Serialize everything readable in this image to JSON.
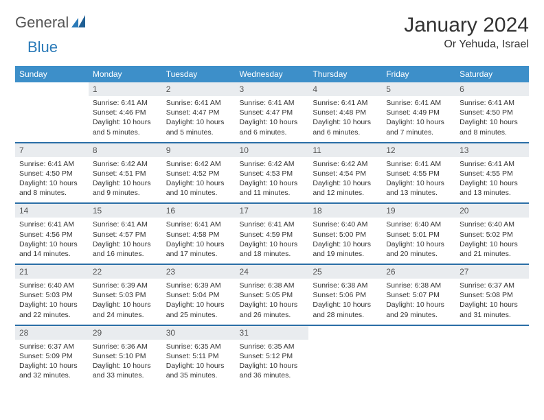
{
  "logo": {
    "word1": "General",
    "word2": "Blue"
  },
  "title": "January 2024",
  "location": "Or Yehuda, Israel",
  "colors": {
    "header_bg": "#3d8fc9",
    "header_text": "#ffffff",
    "week_divider": "#2a6ea6",
    "daynum_bg": "#e9ecef",
    "text": "#333333",
    "logo_gray": "#555555",
    "logo_blue": "#2a7ab8",
    "page_bg": "#ffffff"
  },
  "typography": {
    "title_fontsize": 30,
    "location_fontsize": 16,
    "dayhead_fontsize": 12,
    "daynum_fontsize": 12,
    "body_fontsize": 10.5
  },
  "day_names": [
    "Sunday",
    "Monday",
    "Tuesday",
    "Wednesday",
    "Thursday",
    "Friday",
    "Saturday"
  ],
  "weeks": [
    {
      "nums": [
        "",
        "1",
        "2",
        "3",
        "4",
        "5",
        "6"
      ],
      "cells": [
        {
          "empty": true
        },
        {
          "sunrise": "Sunrise: 6:41 AM",
          "sunset": "Sunset: 4:46 PM",
          "day1": "Daylight: 10 hours",
          "day2": "and 5 minutes."
        },
        {
          "sunrise": "Sunrise: 6:41 AM",
          "sunset": "Sunset: 4:47 PM",
          "day1": "Daylight: 10 hours",
          "day2": "and 5 minutes."
        },
        {
          "sunrise": "Sunrise: 6:41 AM",
          "sunset": "Sunset: 4:47 PM",
          "day1": "Daylight: 10 hours",
          "day2": "and 6 minutes."
        },
        {
          "sunrise": "Sunrise: 6:41 AM",
          "sunset": "Sunset: 4:48 PM",
          "day1": "Daylight: 10 hours",
          "day2": "and 6 minutes."
        },
        {
          "sunrise": "Sunrise: 6:41 AM",
          "sunset": "Sunset: 4:49 PM",
          "day1": "Daylight: 10 hours",
          "day2": "and 7 minutes."
        },
        {
          "sunrise": "Sunrise: 6:41 AM",
          "sunset": "Sunset: 4:50 PM",
          "day1": "Daylight: 10 hours",
          "day2": "and 8 minutes."
        }
      ]
    },
    {
      "nums": [
        "7",
        "8",
        "9",
        "10",
        "11",
        "12",
        "13"
      ],
      "cells": [
        {
          "sunrise": "Sunrise: 6:41 AM",
          "sunset": "Sunset: 4:50 PM",
          "day1": "Daylight: 10 hours",
          "day2": "and 8 minutes."
        },
        {
          "sunrise": "Sunrise: 6:42 AM",
          "sunset": "Sunset: 4:51 PM",
          "day1": "Daylight: 10 hours",
          "day2": "and 9 minutes."
        },
        {
          "sunrise": "Sunrise: 6:42 AM",
          "sunset": "Sunset: 4:52 PM",
          "day1": "Daylight: 10 hours",
          "day2": "and 10 minutes."
        },
        {
          "sunrise": "Sunrise: 6:42 AM",
          "sunset": "Sunset: 4:53 PM",
          "day1": "Daylight: 10 hours",
          "day2": "and 11 minutes."
        },
        {
          "sunrise": "Sunrise: 6:42 AM",
          "sunset": "Sunset: 4:54 PM",
          "day1": "Daylight: 10 hours",
          "day2": "and 12 minutes."
        },
        {
          "sunrise": "Sunrise: 6:41 AM",
          "sunset": "Sunset: 4:55 PM",
          "day1": "Daylight: 10 hours",
          "day2": "and 13 minutes."
        },
        {
          "sunrise": "Sunrise: 6:41 AM",
          "sunset": "Sunset: 4:55 PM",
          "day1": "Daylight: 10 hours",
          "day2": "and 13 minutes."
        }
      ]
    },
    {
      "nums": [
        "14",
        "15",
        "16",
        "17",
        "18",
        "19",
        "20"
      ],
      "cells": [
        {
          "sunrise": "Sunrise: 6:41 AM",
          "sunset": "Sunset: 4:56 PM",
          "day1": "Daylight: 10 hours",
          "day2": "and 14 minutes."
        },
        {
          "sunrise": "Sunrise: 6:41 AM",
          "sunset": "Sunset: 4:57 PM",
          "day1": "Daylight: 10 hours",
          "day2": "and 16 minutes."
        },
        {
          "sunrise": "Sunrise: 6:41 AM",
          "sunset": "Sunset: 4:58 PM",
          "day1": "Daylight: 10 hours",
          "day2": "and 17 minutes."
        },
        {
          "sunrise": "Sunrise: 6:41 AM",
          "sunset": "Sunset: 4:59 PM",
          "day1": "Daylight: 10 hours",
          "day2": "and 18 minutes."
        },
        {
          "sunrise": "Sunrise: 6:40 AM",
          "sunset": "Sunset: 5:00 PM",
          "day1": "Daylight: 10 hours",
          "day2": "and 19 minutes."
        },
        {
          "sunrise": "Sunrise: 6:40 AM",
          "sunset": "Sunset: 5:01 PM",
          "day1": "Daylight: 10 hours",
          "day2": "and 20 minutes."
        },
        {
          "sunrise": "Sunrise: 6:40 AM",
          "sunset": "Sunset: 5:02 PM",
          "day1": "Daylight: 10 hours",
          "day2": "and 21 minutes."
        }
      ]
    },
    {
      "nums": [
        "21",
        "22",
        "23",
        "24",
        "25",
        "26",
        "27"
      ],
      "cells": [
        {
          "sunrise": "Sunrise: 6:40 AM",
          "sunset": "Sunset: 5:03 PM",
          "day1": "Daylight: 10 hours",
          "day2": "and 22 minutes."
        },
        {
          "sunrise": "Sunrise: 6:39 AM",
          "sunset": "Sunset: 5:03 PM",
          "day1": "Daylight: 10 hours",
          "day2": "and 24 minutes."
        },
        {
          "sunrise": "Sunrise: 6:39 AM",
          "sunset": "Sunset: 5:04 PM",
          "day1": "Daylight: 10 hours",
          "day2": "and 25 minutes."
        },
        {
          "sunrise": "Sunrise: 6:38 AM",
          "sunset": "Sunset: 5:05 PM",
          "day1": "Daylight: 10 hours",
          "day2": "and 26 minutes."
        },
        {
          "sunrise": "Sunrise: 6:38 AM",
          "sunset": "Sunset: 5:06 PM",
          "day1": "Daylight: 10 hours",
          "day2": "and 28 minutes."
        },
        {
          "sunrise": "Sunrise: 6:38 AM",
          "sunset": "Sunset: 5:07 PM",
          "day1": "Daylight: 10 hours",
          "day2": "and 29 minutes."
        },
        {
          "sunrise": "Sunrise: 6:37 AM",
          "sunset": "Sunset: 5:08 PM",
          "day1": "Daylight: 10 hours",
          "day2": "and 31 minutes."
        }
      ]
    },
    {
      "nums": [
        "28",
        "29",
        "30",
        "31",
        "",
        "",
        ""
      ],
      "cells": [
        {
          "sunrise": "Sunrise: 6:37 AM",
          "sunset": "Sunset: 5:09 PM",
          "day1": "Daylight: 10 hours",
          "day2": "and 32 minutes."
        },
        {
          "sunrise": "Sunrise: 6:36 AM",
          "sunset": "Sunset: 5:10 PM",
          "day1": "Daylight: 10 hours",
          "day2": "and 33 minutes."
        },
        {
          "sunrise": "Sunrise: 6:35 AM",
          "sunset": "Sunset: 5:11 PM",
          "day1": "Daylight: 10 hours",
          "day2": "and 35 minutes."
        },
        {
          "sunrise": "Sunrise: 6:35 AM",
          "sunset": "Sunset: 5:12 PM",
          "day1": "Daylight: 10 hours",
          "day2": "and 36 minutes."
        },
        {
          "empty": true
        },
        {
          "empty": true
        },
        {
          "empty": true
        }
      ]
    }
  ]
}
